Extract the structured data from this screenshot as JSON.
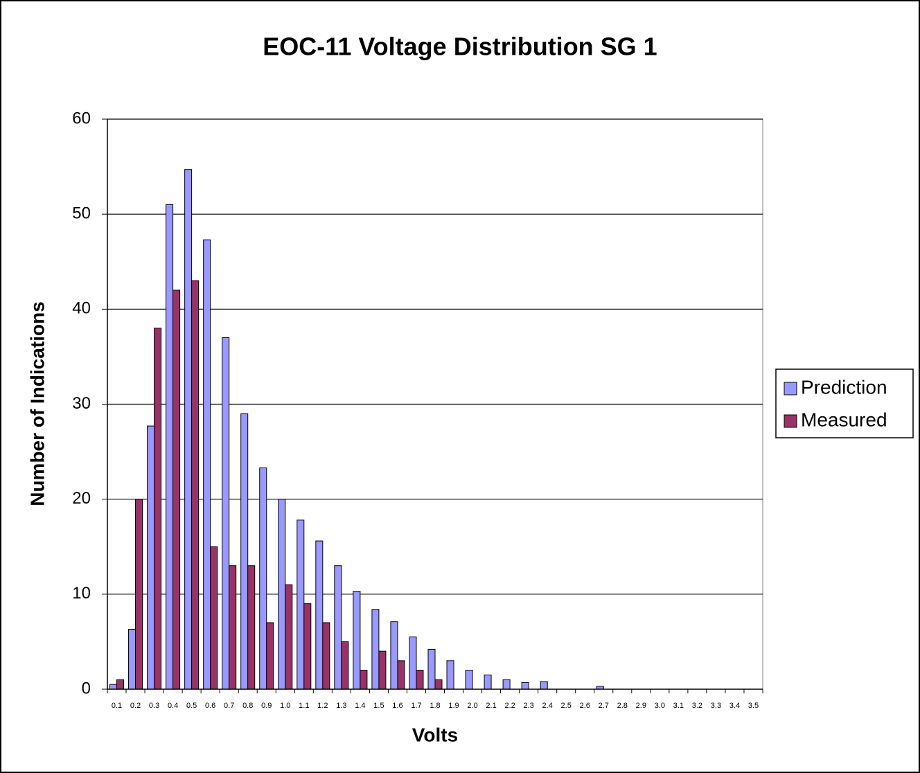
{
  "chart_data": {
    "type": "bar",
    "title": "EOC-11 Voltage Distribution SG 1",
    "x_label": "Volts",
    "y_label": "Number of Indications",
    "categories": [
      "0.1",
      "0.2",
      "0.3",
      "0.4",
      "0.5",
      "0.6",
      "0.7",
      "0.8",
      "0.9",
      "1.0",
      "1.1",
      "1.2",
      "1.3",
      "1.4",
      "1.5",
      "1.6",
      "1.7",
      "1.8",
      "1.9",
      "2.0",
      "2.1",
      "2.2",
      "2.3",
      "2.4",
      "2.5",
      "2.6",
      "2.7",
      "2.8",
      "2.9",
      "3.0",
      "3.1",
      "3.2",
      "3.3",
      "3.4",
      "3.5"
    ],
    "series": [
      {
        "name": "Prediction",
        "color": "#9999ff",
        "values": [
          0.5,
          6.3,
          27.7,
          51,
          54.7,
          47.3,
          37,
          29,
          23.3,
          20,
          17.8,
          15.6,
          13,
          10.3,
          8.4,
          7.1,
          5.5,
          4.2,
          3,
          2,
          1.5,
          1,
          0.7,
          0.8,
          0,
          0,
          0.3,
          0,
          0,
          0,
          0,
          0,
          0,
          0,
          0
        ]
      },
      {
        "name": "Measured",
        "color": "#993366",
        "values": [
          1,
          20,
          38,
          42,
          43,
          15,
          13,
          13,
          7,
          11,
          9,
          7,
          5,
          2,
          4,
          3,
          2,
          1,
          0,
          0,
          0,
          0,
          0,
          0,
          0,
          0,
          0,
          0,
          0,
          0,
          0,
          0,
          0,
          0,
          0
        ]
      }
    ],
    "ylim": [
      0,
      60
    ],
    "yticks": [
      0,
      10,
      20,
      30,
      40,
      50,
      60
    ],
    "grid": true,
    "legend_position": "right"
  }
}
